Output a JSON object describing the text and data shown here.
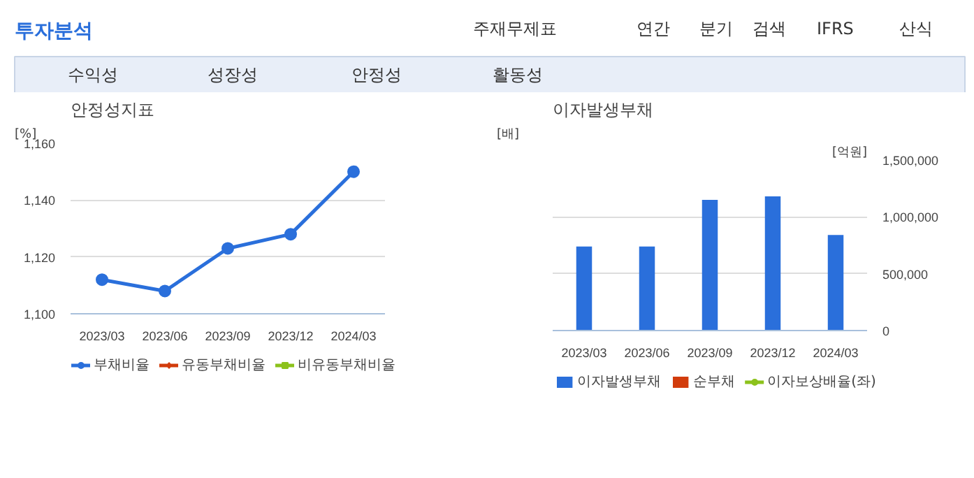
{
  "chart_data": [
    {
      "type": "other",
      "title": "투자분석",
      "annotations": [
        "주재무제표",
        "연간",
        "분기",
        "검색",
        "IFRS",
        "산식",
        "수익성",
        "성장성",
        "안정성",
        "활동성"
      ]
    },
    {
      "type": "line",
      "title": "안정성지표",
      "ylabel": "[%]",
      "categories": [
        "2023/03",
        "2023/06",
        "2023/09",
        "2023/12",
        "2024/03"
      ],
      "series": [
        {
          "name": "부채비율",
          "color": "#2a6fdb",
          "marker": "circle",
          "values": [
            1112,
            1108,
            1123,
            1128,
            1150
          ]
        },
        {
          "name": "유동부채비율",
          "color": "#d23c0c",
          "marker": "diamond",
          "values": [
            null,
            null,
            null,
            null,
            null
          ]
        },
        {
          "name": "비유동부채비율",
          "color": "#8cc21c",
          "marker": "square",
          "values": [
            null,
            null,
            null,
            null,
            null
          ]
        }
      ],
      "ylim": [
        1100,
        1160
      ],
      "yticks": [
        {
          "value": 1100,
          "label": "1,100"
        },
        {
          "value": 1120,
          "label": "1,120"
        },
        {
          "value": 1140,
          "label": "1,140"
        },
        {
          "value": 1160,
          "label": "1,160"
        }
      ],
      "grid": "y",
      "legend": "bottom"
    },
    {
      "type": "bar",
      "title": "이자발생부채",
      "ylabel": "[배]",
      "y2label": "[억원]",
      "categories": [
        "2023/03",
        "2023/06",
        "2023/09",
        "2023/12",
        "2024/03"
      ],
      "series": [
        {
          "name": "이자발생부채",
          "type": "bar",
          "axis": "y2",
          "color": "#2a6fdb",
          "values": [
            740000,
            740000,
            1150000,
            1180000,
            840000
          ]
        },
        {
          "name": "순부채",
          "type": "bar",
          "axis": "y2",
          "color": "#d23c0c",
          "values": [
            null,
            null,
            null,
            null,
            null
          ]
        },
        {
          "name": "이자보상배율(좌)",
          "type": "line",
          "axis": "y",
          "color": "#8cc21c",
          "marker": "circle",
          "values": [
            null,
            null,
            null,
            null,
            null
          ]
        }
      ],
      "y2lim": [
        0,
        1500000
      ],
      "y2ticks": [
        0,
        {
          "value": 500000,
          "label": "500,000"
        },
        {
          "value": 1000000,
          "label": "1,000,000"
        },
        {
          "value": 1500000,
          "label": "1,500,000"
        }
      ],
      "grid": "y",
      "legend": "bottom"
    }
  ]
}
